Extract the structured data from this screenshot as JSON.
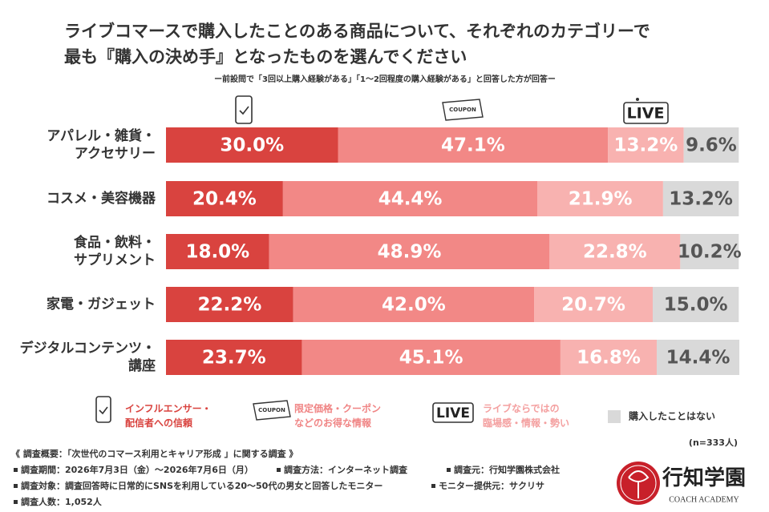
{
  "chart_data": {
    "type": "stacked-bar-horizontal",
    "title": "ライブコマースで購入したことのある商品について、それぞれのカテゴリーで\n最も『購入の決め手』となったものを選んでください",
    "subtitle": "ー前設問で「3回以上購入経験がある」「1〜2回程度の購入経験がある」と回答した方が回答ー",
    "categories": [
      "アパレル・雑貨・\nアクセサリー",
      "コスメ・美容機器",
      "食品・飲料・\nサプリメント",
      "家電・ガジェット",
      "デジタルコンテンツ・\n講座"
    ],
    "xlim": [
      0,
      100
    ],
    "series": [
      {
        "name": "インフルエンサー・\n配信者への信頼",
        "color": "#d9433f",
        "values": [
          30.0,
          20.4,
          18.0,
          22.2,
          23.7
        ],
        "value_labels": [
          "30.0%",
          "20.4%",
          "18.0%",
          "22.2%",
          "23.7%"
        ]
      },
      {
        "name": "限定価格・クーポン\nなどのお得な情報",
        "color": "#f28886",
        "values": [
          47.1,
          44.4,
          48.9,
          42.0,
          45.1
        ],
        "value_labels": [
          "47.1%",
          "44.4%",
          "48.9%",
          "42.0%",
          "45.1%"
        ]
      },
      {
        "name": "ライブならではの\n臨場感・情報・勢い",
        "color": "#f8b2b0",
        "values": [
          13.2,
          21.9,
          22.8,
          20.7,
          16.8
        ],
        "value_labels": [
          "13.2%",
          "21.9%",
          "22.8%",
          "20.7%",
          "16.8%"
        ]
      },
      {
        "name": "購入したことはない",
        "color": "#d9d9d9",
        "values": [
          9.6,
          13.2,
          10.2,
          15.0,
          14.4
        ],
        "value_labels": [
          "9.6%",
          "13.2%",
          "10.2%",
          "15.0%",
          "14.4%"
        ]
      }
    ],
    "icon_text": {
      "coupon": "COUPON",
      "live": "LIVE"
    },
    "sample_size": "(n=333人)",
    "footnotes": {
      "heading": "《 調査概要：「次世代のコマース利用とキャリア形成 」に関する調査 》",
      "period": "調査期間：2026年7月3日（金）〜2026年7月6日（月）",
      "method": "調査方法：インターネット調査",
      "source": "調査元：行知学園株式会社",
      "target": "調査対象：調査回答時に日常的にSNSを利用している20〜50代の男女と回答したモニター",
      "provider": "モニター提供元：サクリサ",
      "count": "調査人数：1,052人"
    },
    "logo": {
      "name": "行知学園",
      "sub": "COACH ACADEMY"
    }
  }
}
